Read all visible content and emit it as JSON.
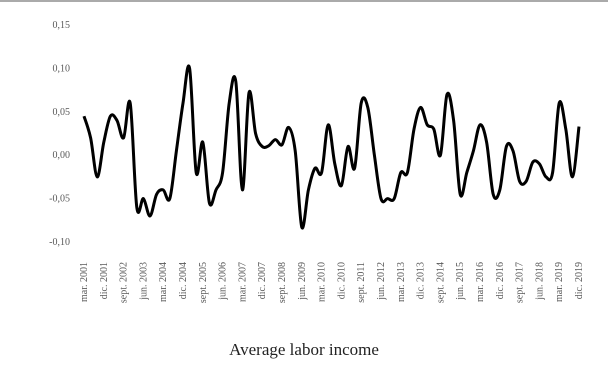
{
  "chart_data": {
    "type": "line",
    "title": "Average labor income",
    "categories": [
      "mar. 2001",
      null,
      null,
      "dic. 2001",
      null,
      null,
      "sept. 2002",
      null,
      null,
      "jun. 2003",
      null,
      null,
      "mar. 2004",
      null,
      null,
      "dic. 2004",
      null,
      null,
      "sept. 2005",
      null,
      null,
      "jun. 2006",
      null,
      null,
      "mar. 2007",
      null,
      null,
      "dic. 2007",
      null,
      null,
      "sept. 2008",
      null,
      null,
      "jun. 2009",
      null,
      null,
      "mar. 2010",
      null,
      null,
      "dic. 2010",
      null,
      null,
      "sept. 2011",
      null,
      null,
      "jun. 2012",
      null,
      null,
      "mar. 2013",
      null,
      null,
      "dic. 2013",
      null,
      null,
      "sept. 2014",
      null,
      null,
      "jun. 2015",
      null,
      null,
      "mar. 2016",
      null,
      null,
      "dic. 2016",
      null,
      null,
      "sept. 2017",
      null,
      null,
      "jun. 2018",
      null,
      null,
      "mar. 2019",
      null,
      null,
      "dic. 2019"
    ],
    "values": [
      0.045,
      0.02,
      -0.025,
      0.015,
      0.045,
      0.04,
      0.02,
      0.06,
      -0.06,
      -0.05,
      -0.07,
      -0.045,
      -0.04,
      -0.05,
      0.005,
      0.06,
      0.1,
      -0.02,
      0.015,
      -0.055,
      -0.04,
      -0.02,
      0.06,
      0.085,
      -0.04,
      0.072,
      0.025,
      0.01,
      0.011,
      0.018,
      0.012,
      0.032,
      0.005,
      -0.083,
      -0.04,
      -0.015,
      -0.02,
      0.035,
      -0.01,
      -0.035,
      0.01,
      -0.015,
      0.06,
      0.055,
      0,
      -0.05,
      -0.05,
      -0.05,
      -0.02,
      -0.02,
      0.03,
      0.055,
      0.035,
      0.03,
      0,
      0.07,
      0.04,
      -0.045,
      -0.02,
      0.005,
      0.035,
      0.015,
      -0.045,
      -0.04,
      0.01,
      0.005,
      -0.03,
      -0.03,
      -0.008,
      -0.01,
      -0.025,
      -0.02,
      0.06,
      0.03,
      -0.025,
      0.033
    ],
    "color": "#000000",
    "ylim": [
      -0.1,
      0.15
    ],
    "yticks": [
      {
        "value": -0.1,
        "label": "-0,10"
      },
      {
        "value": -0.05,
        "label": "-0,05"
      },
      {
        "value": 0,
        "label": "0,00"
      },
      {
        "value": 0.05,
        "label": "0,05"
      },
      {
        "value": 0.1,
        "label": "0,10"
      },
      {
        "value": 0.15,
        "label": "0,15"
      }
    ]
  }
}
